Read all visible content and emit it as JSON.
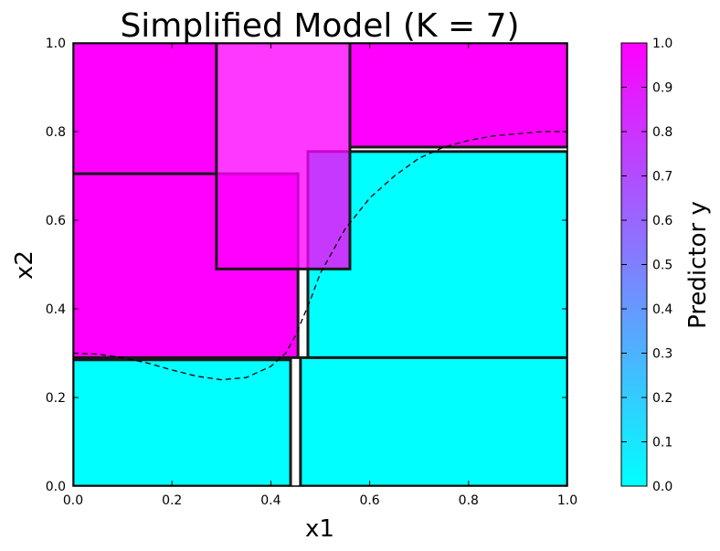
{
  "chart_data": {
    "type": "heatmap",
    "title": "Simplified Model (K = 7)",
    "xlabel": "x1",
    "ylabel": "x2",
    "xlim": [
      0.0,
      1.0
    ],
    "ylim": [
      0.0,
      1.0
    ],
    "xticks": [
      "0.0",
      "0.2",
      "0.4",
      "0.6",
      "0.8",
      "1.0"
    ],
    "yticks": [
      "0.0",
      "0.2",
      "0.4",
      "0.6",
      "0.8",
      "1.0"
    ],
    "grid": false,
    "colormap": {
      "low": "#00ffff",
      "high": "#ff00ff"
    },
    "colorbar": {
      "label": "Predictor y",
      "range": [
        0.0,
        1.0
      ],
      "ticks": [
        "0.0",
        "0.1",
        "0.2",
        "0.3",
        "0.4",
        "0.5",
        "0.6",
        "0.7",
        "0.8",
        "0.9",
        "1.0"
      ]
    },
    "boxes": [
      {
        "x": [
          0.0,
          0.44
        ],
        "y": [
          0.0,
          0.285
        ],
        "value": 0.0
      },
      {
        "x": [
          0.46,
          1.0
        ],
        "y": [
          0.0,
          0.29
        ],
        "value": 0.0
      },
      {
        "x": [
          0.475,
          1.0
        ],
        "y": [
          0.29,
          0.755
        ],
        "value": 0.0
      },
      {
        "x": [
          0.0,
          0.455
        ],
        "y": [
          0.29,
          0.705
        ],
        "value": 1.0
      },
      {
        "x": [
          0.0,
          0.29
        ],
        "y": [
          0.705,
          1.0
        ],
        "value": 1.0
      },
      {
        "x": [
          0.56,
          1.0
        ],
        "y": [
          0.765,
          1.0
        ],
        "value": 1.0
      },
      {
        "x": [
          0.29,
          0.56
        ],
        "y": [
          0.49,
          1.0
        ],
        "value": 1.0,
        "alpha": 0.78
      }
    ],
    "boundary_curve": {
      "style": "dashed",
      "x": [
        0.0,
        0.05,
        0.1,
        0.15,
        0.2,
        0.25,
        0.3,
        0.35,
        0.4,
        0.43,
        0.45,
        0.48,
        0.5,
        0.55,
        0.6,
        0.65,
        0.7,
        0.75,
        0.8,
        0.85,
        0.9,
        0.95,
        1.0
      ],
      "y": [
        0.3,
        0.298,
        0.29,
        0.278,
        0.262,
        0.248,
        0.24,
        0.245,
        0.27,
        0.3,
        0.34,
        0.42,
        0.48,
        0.58,
        0.65,
        0.7,
        0.74,
        0.765,
        0.78,
        0.79,
        0.795,
        0.8,
        0.8
      ]
    }
  }
}
